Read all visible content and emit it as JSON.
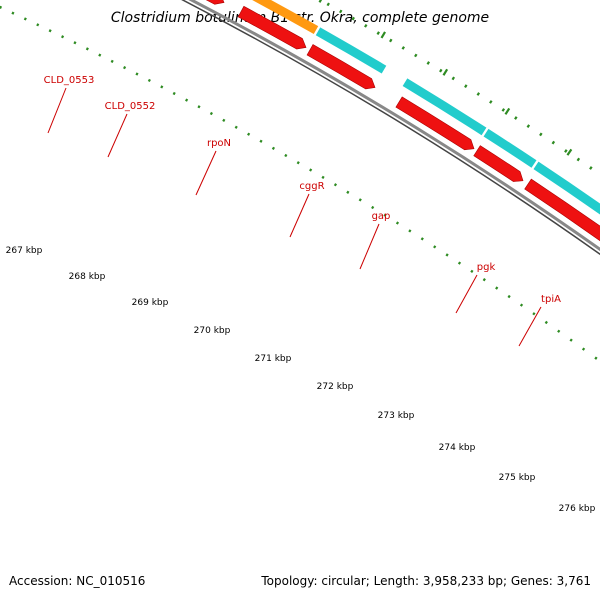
{
  "title": "Clostridium botulinum B1 str. Okra, complete genome",
  "footer": {
    "accession": "Accession: NC_010516",
    "topology": "Topology: circular; Length: 3,958,233 bp; Genes: 3,761"
  },
  "colors": {
    "cds": "#ee1111",
    "gray_gene": "#bbbbbb",
    "cyan_gene": "#22cccc",
    "orange_gene": "#ff9911",
    "label": "#cc0000",
    "tick": "#2e8b22",
    "backbone": "#888888"
  },
  "gene_labels": [
    {
      "name": "cld0553",
      "text": "CLD_0553"
    },
    {
      "name": "cld0552",
      "text": "CLD_0552"
    },
    {
      "name": "rpon",
      "text": "rpoN"
    },
    {
      "name": "cggr",
      "text": "cggR"
    },
    {
      "name": "gap",
      "text": "gap"
    },
    {
      "name": "pgk",
      "text": "pgk"
    },
    {
      "name": "tpia",
      "text": "tpiA"
    }
  ],
  "kbp_labels": [
    "267 kbp",
    "268 kbp",
    "269 kbp",
    "270 kbp",
    "271 kbp",
    "272 kbp",
    "273 kbp",
    "274 kbp",
    "275 kbp",
    "276 kbp"
  ]
}
